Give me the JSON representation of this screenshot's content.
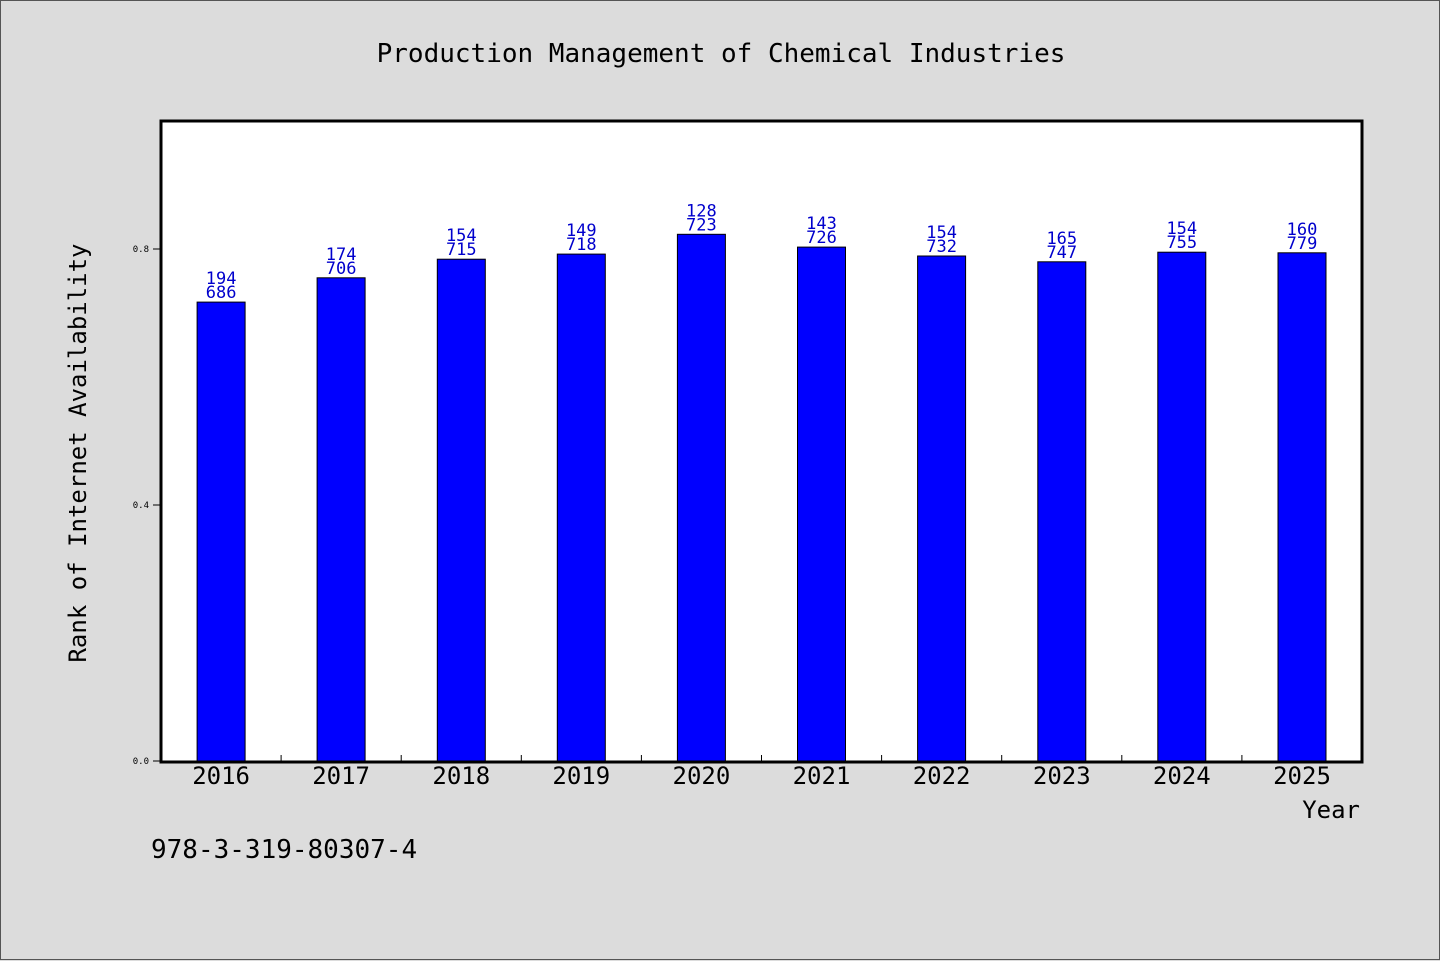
{
  "identifier_text": "978-3-319-80307-4",
  "colors": {
    "background": "#dcdcdc",
    "plot_background": "#ffffff",
    "bar": "#0000ff",
    "bar_label": "#0000cc",
    "axis": "#000000"
  },
  "chart_data": {
    "type": "bar",
    "title": "Production Management of Chemical Industries",
    "xlabel": "Year",
    "ylabel": "Rank of Internet Availability",
    "categories": [
      "2016",
      "2017",
      "2018",
      "2019",
      "2020",
      "2021",
      "2022",
      "2023",
      "2024",
      "2025"
    ],
    "values": [
      0.717,
      0.755,
      0.784,
      0.792,
      0.823,
      0.803,
      0.789,
      0.78,
      0.795,
      0.794
    ],
    "bar_labels": [
      [
        "194",
        "686"
      ],
      [
        "174",
        "706"
      ],
      [
        "154",
        "715"
      ],
      [
        "149",
        "718"
      ],
      [
        "128",
        "723"
      ],
      [
        "143",
        "726"
      ],
      [
        "154",
        "732"
      ],
      [
        "165",
        "747"
      ],
      [
        "154",
        "755"
      ],
      [
        "160",
        "779"
      ]
    ],
    "ylim": [
      0,
      1
    ],
    "yticks": [
      0.0,
      0.4,
      0.8
    ],
    "ytick_labels": [
      "0.0",
      "0.4",
      "0.8"
    ],
    "grid": false,
    "legend": "none"
  }
}
